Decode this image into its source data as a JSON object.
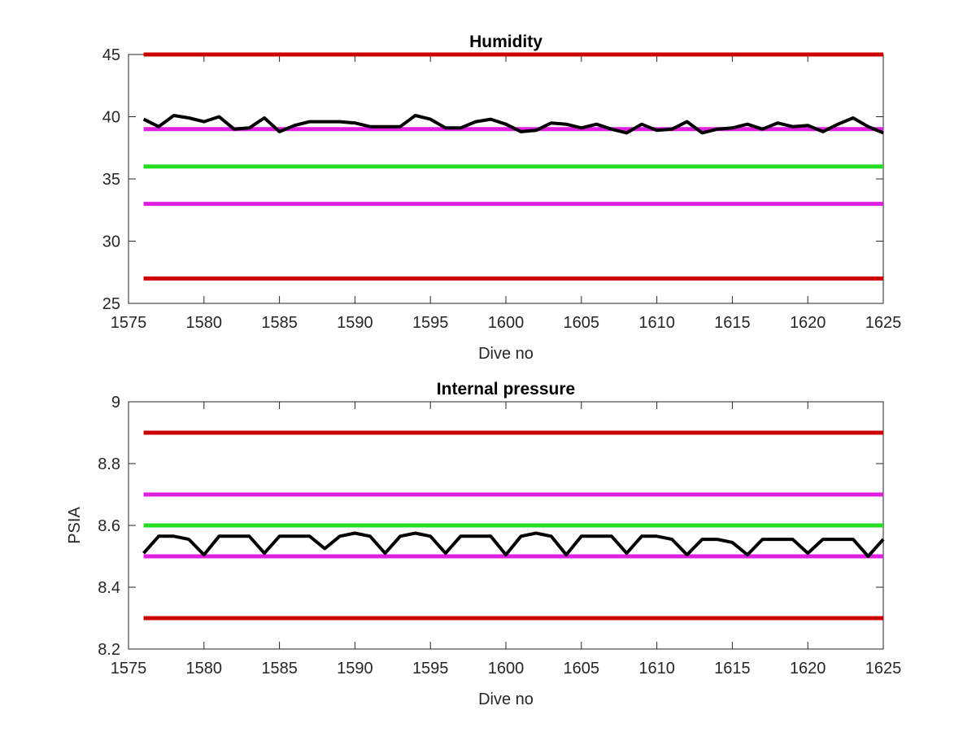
{
  "chart_data": [
    {
      "type": "line",
      "title": "Humidity",
      "xlabel": "Dive no",
      "ylabel": "",
      "xlim": [
        1575,
        1625
      ],
      "ylim": [
        25,
        45
      ],
      "xticks": [
        1575,
        1580,
        1585,
        1590,
        1595,
        1600,
        1605,
        1610,
        1615,
        1620,
        1625
      ],
      "yticks": [
        25,
        30,
        35,
        40,
        45
      ],
      "grid": false,
      "reference_lines": [
        {
          "y": 45,
          "color": "#cc0000"
        },
        {
          "y": 39,
          "color": "#e020e0"
        },
        {
          "y": 36,
          "color": "#22dd22"
        },
        {
          "y": 33,
          "color": "#e020e0"
        },
        {
          "y": 27,
          "color": "#cc0000"
        }
      ],
      "series": [
        {
          "color": "#000000",
          "x": [
            1576,
            1577,
            1578,
            1579,
            1580,
            1581,
            1582,
            1583,
            1584,
            1585,
            1586,
            1587,
            1588,
            1589,
            1590,
            1591,
            1592,
            1593,
            1594,
            1595,
            1596,
            1597,
            1598,
            1599,
            1600,
            1601,
            1602,
            1603,
            1604,
            1605,
            1606,
            1607,
            1608,
            1609,
            1610,
            1611,
            1612,
            1613,
            1614,
            1615,
            1616,
            1617,
            1618,
            1619,
            1620,
            1621,
            1622,
            1623,
            1624,
            1625
          ],
          "values": [
            39.8,
            39.2,
            40.1,
            39.9,
            39.6,
            40.0,
            39.0,
            39.1,
            39.9,
            38.8,
            39.3,
            39.6,
            39.6,
            39.6,
            39.5,
            39.2,
            39.2,
            39.2,
            40.1,
            39.8,
            39.1,
            39.1,
            39.6,
            39.8,
            39.4,
            38.8,
            38.9,
            39.5,
            39.4,
            39.1,
            39.4,
            39.0,
            38.7,
            39.4,
            38.9,
            39.0,
            39.6,
            38.7,
            39.0,
            39.1,
            39.4,
            39.0,
            39.5,
            39.2,
            39.3,
            38.8,
            39.4,
            39.9,
            39.2,
            38.7
          ]
        }
      ]
    },
    {
      "type": "line",
      "title": "Internal pressure",
      "xlabel": "Dive no",
      "ylabel": "PSIA",
      "xlim": [
        1575,
        1625
      ],
      "ylim": [
        8.2,
        9
      ],
      "xticks": [
        1575,
        1580,
        1585,
        1590,
        1595,
        1600,
        1605,
        1610,
        1615,
        1620,
        1625
      ],
      "yticks": [
        8.2,
        8.4,
        8.6,
        8.8,
        9
      ],
      "ytick_labels": [
        "8.2",
        "8.4",
        "8.6",
        "8.8",
        "9"
      ],
      "grid": false,
      "reference_lines": [
        {
          "y": 8.9,
          "color": "#cc0000"
        },
        {
          "y": 8.7,
          "color": "#e020e0"
        },
        {
          "y": 8.6,
          "color": "#22dd22"
        },
        {
          "y": 8.5,
          "color": "#e020e0"
        },
        {
          "y": 8.3,
          "color": "#cc0000"
        }
      ],
      "series": [
        {
          "color": "#000000",
          "x": [
            1576,
            1577,
            1578,
            1579,
            1580,
            1581,
            1582,
            1583,
            1584,
            1585,
            1586,
            1587,
            1588,
            1589,
            1590,
            1591,
            1592,
            1593,
            1594,
            1595,
            1596,
            1597,
            1598,
            1599,
            1600,
            1601,
            1602,
            1603,
            1604,
            1605,
            1606,
            1607,
            1608,
            1609,
            1610,
            1611,
            1612,
            1613,
            1614,
            1615,
            1616,
            1617,
            1618,
            1619,
            1620,
            1621,
            1622,
            1623,
            1624,
            1625
          ],
          "values": [
            8.51,
            8.565,
            8.565,
            8.555,
            8.505,
            8.565,
            8.565,
            8.565,
            8.51,
            8.565,
            8.565,
            8.565,
            8.525,
            8.565,
            8.575,
            8.565,
            8.51,
            8.565,
            8.575,
            8.565,
            8.51,
            8.565,
            8.565,
            8.565,
            8.505,
            8.565,
            8.575,
            8.565,
            8.505,
            8.565,
            8.565,
            8.565,
            8.51,
            8.565,
            8.565,
            8.555,
            8.505,
            8.555,
            8.555,
            8.545,
            8.505,
            8.555,
            8.555,
            8.555,
            8.51,
            8.555,
            8.555,
            8.555,
            8.5,
            8.555
          ]
        }
      ]
    }
  ]
}
